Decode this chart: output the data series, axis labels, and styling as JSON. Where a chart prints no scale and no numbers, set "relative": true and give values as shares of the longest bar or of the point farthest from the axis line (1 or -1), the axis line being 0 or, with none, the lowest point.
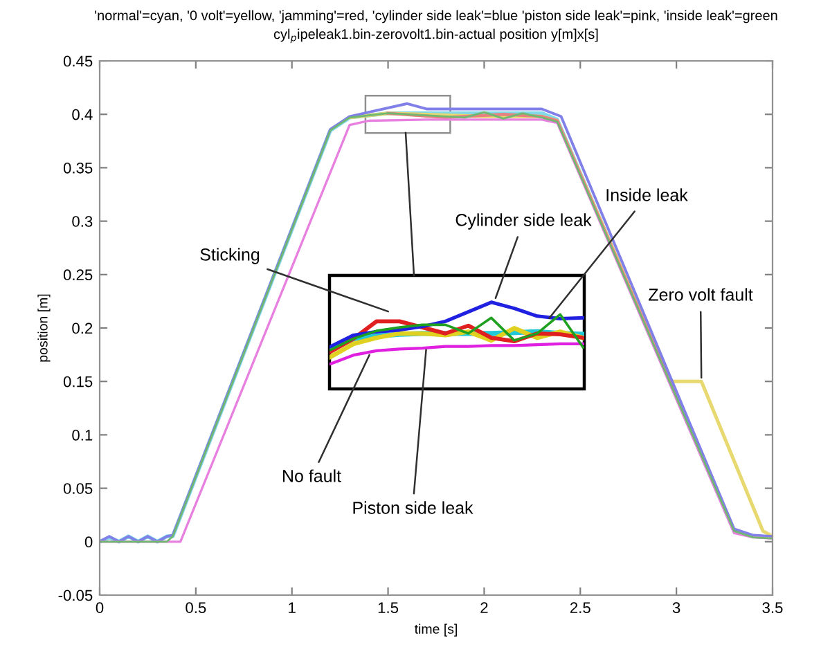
{
  "chart_data": [
    {
      "type": "line",
      "title": "'normal'=cyan, '0 volt'=yellow, 'jamming'=red, 'cylinder side leak'=blue 'piston side leak'=pink, 'inside leak'=green",
      "subtitle": "cyl$_{p}$ipeleak1.bin-zerovolt1.bin-actual position y[m]x[s]",
      "xlabel": "time [s]",
      "ylabel": "position [m]",
      "xlim": [
        0,
        3.5
      ],
      "ylim": [
        -0.05,
        0.45
      ],
      "xticks": [
        0,
        0.5,
        1,
        1.5,
        2,
        2.5,
        3,
        3.5
      ],
      "yticks": [
        -0.05,
        0,
        0.05,
        0.1,
        0.15,
        0.2,
        0.25,
        0.3,
        0.35,
        0.4,
        0.45
      ],
      "grid": false,
      "line_style": "solid",
      "marker": "none",
      "annotations": [
        {
          "text": "Zero volt fault",
          "x": 3.13,
          "y": 0.15
        }
      ],
      "series": [
        {
          "color": "#80d8e8",
          "x": [
            0,
            0.05,
            0.1,
            0.15,
            0.2,
            0.25,
            0.3,
            0.35,
            0.38,
            1.2,
            1.3,
            1.5,
            2.0,
            2.3,
            2.38,
            3.3
          ],
          "values": [
            0,
            0.004,
            0,
            0.005,
            0,
            0.005,
            0,
            0.005,
            0.005,
            0.385,
            0.397,
            0.401,
            0.401,
            0.401,
            0.395,
            0.01
          ]
        },
        {
          "color": "#e8d870",
          "x": [
            1.3,
            1.5,
            2.0,
            2.3,
            2.38,
            2.97,
            3.13,
            3.45,
            3.5
          ],
          "values": [
            0.397,
            0.401,
            0.398,
            0.398,
            0.394,
            0.15,
            0.15,
            0.01,
            0.005
          ]
        },
        {
          "color": "#e88080",
          "x": [
            1.5,
            1.8,
            2.1,
            2.3,
            2.38,
            3.3
          ],
          "values": [
            0.401,
            0.397,
            0.4,
            0.398,
            0.394,
            0.01
          ]
        },
        {
          "color": "#8080e8",
          "x": [
            0,
            0.05,
            0.1,
            0.15,
            0.2,
            0.25,
            0.3,
            0.35,
            0.38,
            1.2,
            1.3,
            1.6,
            1.7,
            2.0,
            2.3,
            2.4,
            3.3,
            3.4,
            3.5
          ],
          "values": [
            0,
            0.005,
            0,
            0.005,
            0,
            0.005,
            0,
            0.005,
            0.006,
            0.386,
            0.398,
            0.41,
            0.405,
            0.405,
            0.405,
            0.398,
            0.012,
            0.006,
            0.005
          ]
        },
        {
          "color": "#e880e0",
          "x": [
            0,
            0.42,
            1.3,
            1.4,
            1.7,
            2.0,
            2.3,
            2.38,
            3.3,
            3.4,
            3.5
          ],
          "values": [
            0,
            0,
            0.39,
            0.394,
            0.395,
            0.395,
            0.395,
            0.392,
            0.008,
            0.004,
            0.003
          ]
        },
        {
          "color": "#70b870",
          "x": [
            0,
            0.35,
            0.38,
            1.2,
            1.3,
            1.5,
            1.9,
            2.0,
            2.1,
            2.2,
            2.3,
            2.38,
            3.3,
            3.4,
            3.5
          ],
          "values": [
            0,
            0,
            0.005,
            0.385,
            0.397,
            0.401,
            0.397,
            0.402,
            0.396,
            0.401,
            0.397,
            0.393,
            0.01,
            0.004,
            0.003
          ]
        }
      ]
    },
    {
      "type": "line",
      "relative": true,
      "grid": false,
      "line_style": "solid",
      "marker": "none",
      "categories": [
        null,
        null,
        null,
        null,
        null,
        null,
        null,
        null,
        null,
        null,
        null,
        null
      ],
      "annotations": [
        "Sticking",
        "Cylinder side leak",
        "Inside leak",
        "No fault",
        "Piston side leak"
      ],
      "series": [
        {
          "color": "#20c8d8",
          "values": [
            0.45,
            0.58,
            0.61,
            0.63,
            0.64,
            0.64,
            0.64,
            0.64,
            0.65,
            0.66,
            0.64,
            0.63
          ]
        },
        {
          "color": "#e0d020",
          "values": [
            0.37,
            0.52,
            0.59,
            0.64,
            0.64,
            0.62,
            0.66,
            0.56,
            0.7,
            0.59,
            0.66,
            0.59
          ]
        },
        {
          "color": "#e02020",
          "values": [
            0.43,
            0.58,
            0.78,
            0.78,
            0.71,
            0.64,
            0.73,
            0.59,
            0.55,
            0.64,
            0.63,
            0.59
          ]
        },
        {
          "color": "#2020e0",
          "values": [
            0.49,
            0.62,
            0.66,
            0.68,
            0.72,
            0.78,
            0.89,
            1.0,
            0.93,
            0.84,
            0.81,
            0.82
          ]
        },
        {
          "color": "#e020e0",
          "values": [
            0.29,
            0.39,
            0.44,
            0.46,
            0.47,
            0.49,
            0.49,
            0.5,
            0.5,
            0.51,
            0.52,
            0.52
          ]
        },
        {
          "color": "#20a020",
          "values": [
            0.45,
            0.58,
            0.67,
            0.71,
            0.74,
            0.74,
            0.64,
            0.82,
            0.56,
            0.64,
            0.86,
            0.48
          ]
        }
      ]
    }
  ]
}
